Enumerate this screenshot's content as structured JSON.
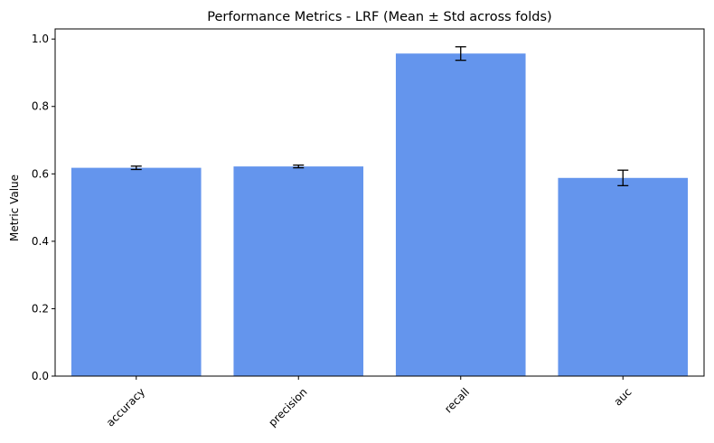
{
  "chart_data": {
    "type": "bar",
    "title": "Performance Metrics - LRF (Mean ± Std across folds)",
    "xlabel": "",
    "ylabel": "Metric Value",
    "categories": [
      "accuracy",
      "precision",
      "recall",
      "auc"
    ],
    "values": [
      0.618,
      0.622,
      0.957,
      0.588
    ],
    "errors": [
      0.005,
      0.004,
      0.02,
      0.023
    ],
    "ylim": [
      0.0,
      1.03
    ],
    "yticks": [
      0.0,
      0.2,
      0.4,
      0.6,
      0.8,
      1.0
    ],
    "ytick_labels": [
      "0.0",
      "0.2",
      "0.4",
      "0.6",
      "0.8",
      "1.0"
    ],
    "x_tick_rotation_deg": -45,
    "grid": false,
    "legend": "none",
    "bar_color": "#6495ed",
    "error_color": "#000000"
  }
}
